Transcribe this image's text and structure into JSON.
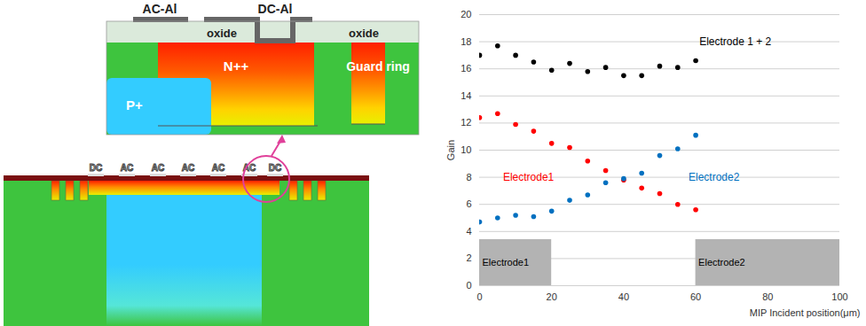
{
  "chart_data": {
    "type": "scatter",
    "x_label": "MIP Incident position(μm)",
    "y_label": "Gain",
    "x": [
      0,
      5,
      10,
      15,
      20,
      25,
      30,
      35,
      40,
      45,
      50,
      55,
      60
    ],
    "series": [
      {
        "name": "Electrode 1 + 2",
        "color": "#000000",
        "marker": "circle",
        "label_at": [
          61,
          18
        ],
        "values": [
          17.0,
          17.7,
          17.0,
          16.5,
          15.9,
          16.4,
          15.8,
          16.1,
          15.5,
          15.5,
          16.2,
          16.1,
          16.6
        ]
      },
      {
        "name": "Electrode1",
        "color": "#ff0000",
        "marker": "circle",
        "label_at": [
          6.5,
          8
        ],
        "values": [
          12.4,
          12.7,
          11.9,
          11.4,
          10.5,
          10.2,
          9.2,
          8.5,
          7.8,
          7.2,
          6.8,
          6.0,
          5.6
        ]
      },
      {
        "name": "Electrode2",
        "color": "#0070c0",
        "marker": "circle",
        "label_at": [
          58,
          8
        ],
        "values": [
          4.7,
          5.0,
          5.2,
          5.1,
          5.5,
          6.3,
          6.7,
          7.6,
          7.9,
          8.3,
          9.6,
          10.1,
          11.1
        ]
      }
    ],
    "electrodes": [
      {
        "label": "Electrode1",
        "x": [
          0,
          20
        ],
        "y": [
          0,
          3.4
        ],
        "color": "#b3b3b3"
      },
      {
        "label": "Electrode2",
        "x": [
          60,
          100
        ],
        "y": [
          0,
          3.4
        ],
        "color": "#b3b3b3"
      }
    ],
    "xlim": [
      0,
      100
    ],
    "xticks": [
      0,
      20,
      40,
      60,
      80,
      100
    ],
    "ylim": [
      0,
      20
    ],
    "yticks": [
      0,
      2,
      4,
      6,
      8,
      10,
      12,
      14,
      16,
      18,
      20
    ],
    "grid": "y"
  },
  "diagram": {
    "inset": {
      "ac_al": "AC-Al",
      "dc_al": "DC-Al",
      "oxide": [
        "oxide",
        "oxide"
      ],
      "n_plus": "N++",
      "guard_ring": "Guard ring",
      "p_plus": "P+"
    },
    "electrode_labels": [
      "DC",
      "AC",
      "AC",
      "AC",
      "AC",
      "AC",
      "DC"
    ]
  }
}
